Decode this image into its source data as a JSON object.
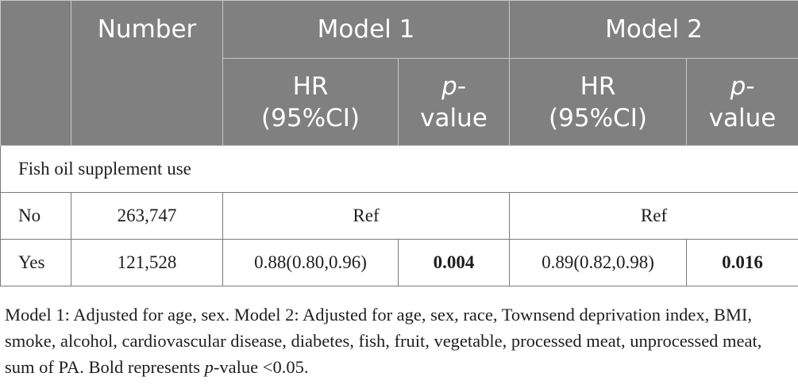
{
  "header": {
    "number": "Number",
    "model1": "Model 1",
    "model2": "Model 2",
    "hr_line1": "HR",
    "hr_line2": "(95%CI)",
    "p_line1": "p-",
    "p_line2": "value"
  },
  "section_label": "Fish oil supplement use",
  "rows": [
    {
      "label": "No",
      "number": "263,747",
      "model1": "Ref",
      "model2": "Ref"
    },
    {
      "label": "Yes",
      "number": "121,528",
      "m1_hr": "0.88(0.80,0.96)",
      "m1_p": "0.004",
      "m2_hr": "0.89(0.82,0.98)",
      "m2_p": "0.016"
    }
  ],
  "footnote": {
    "part1": "Model 1: Adjusted for age, sex. Model 2: Adjusted for age, sex, race, Townsend deprivation index, BMI, smoke, alcohol, cardiovascular disease, diabetes, fish, fruit, vegetable, processed meat, unprocessed meat, sum of PA. Bold represents ",
    "p_italic": "p",
    "part2": "-value <0.05."
  }
}
